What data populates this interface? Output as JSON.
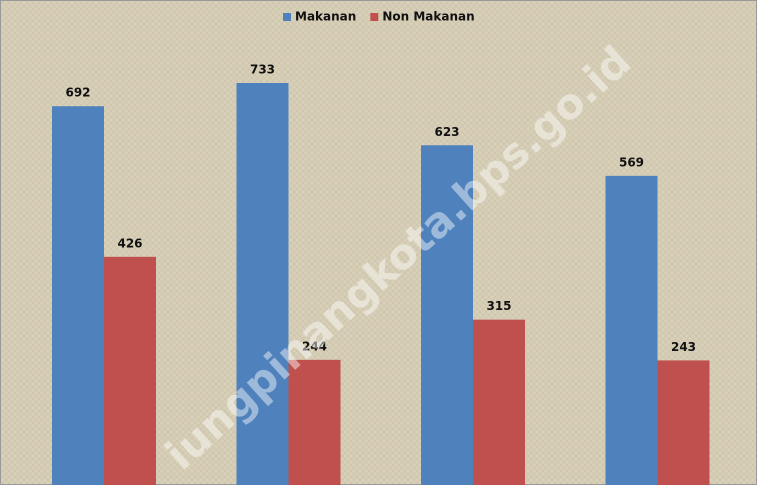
{
  "chart_data": {
    "type": "bar",
    "categories": [
      null,
      null,
      null,
      null
    ],
    "series": [
      {
        "name": "Makanan",
        "color": "#4f81bd",
        "values": [
          692,
          733,
          623,
          569
        ]
      },
      {
        "name": "Non Makanan",
        "color": "#c0504d",
        "values": [
          426,
          244,
          315,
          243
        ]
      }
    ],
    "legend": "top",
    "watermark": "iungpinangkota.bps.go.id"
  }
}
